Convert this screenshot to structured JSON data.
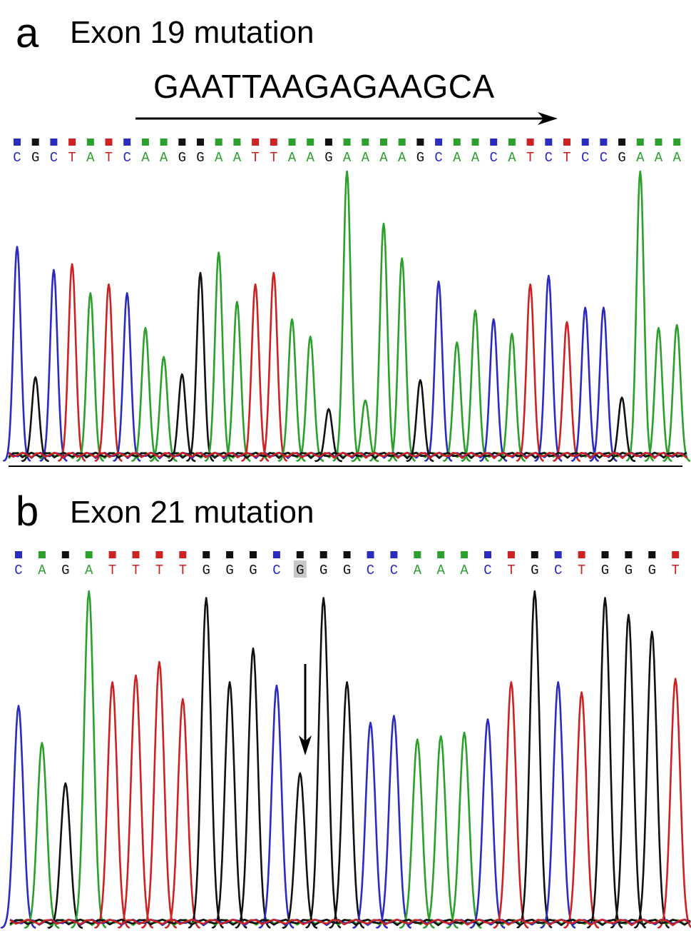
{
  "colors": {
    "A": "#2ca02c",
    "C": "#2b2bbf",
    "G": "#111111",
    "T": "#cc2222",
    "arrow": "#000000",
    "highlight": "#c8c8c8"
  },
  "panels": [
    {
      "label": "a",
      "title": "Exon 19 mutation",
      "insert_sequence": "GAATTAAGAGAAGCA",
      "bases": [
        "C",
        "G",
        "C",
        "T",
        "A",
        "T",
        "C",
        "A",
        "A",
        "G",
        "G",
        "A",
        "A",
        "T",
        "T",
        "A",
        "A",
        "G",
        "A",
        "A",
        "A",
        "A",
        "G",
        "C",
        "A",
        "A",
        "C",
        "A",
        "T",
        "C",
        "T",
        "C",
        "C",
        "G",
        "A",
        "A",
        "A"
      ],
      "highlight_index": null
    },
    {
      "label": "b",
      "title": "Exon 21 mutation",
      "insert_sequence": "",
      "bases": [
        "C",
        "A",
        "G",
        "A",
        "T",
        "T",
        "T",
        "T",
        "G",
        "G",
        "G",
        "C",
        "G",
        "G",
        "G",
        "C",
        "C",
        "A",
        "A",
        "A",
        "C",
        "T",
        "G",
        "C",
        "T",
        "G",
        "G",
        "G",
        "T"
      ],
      "highlight_index": 12
    }
  ]
}
